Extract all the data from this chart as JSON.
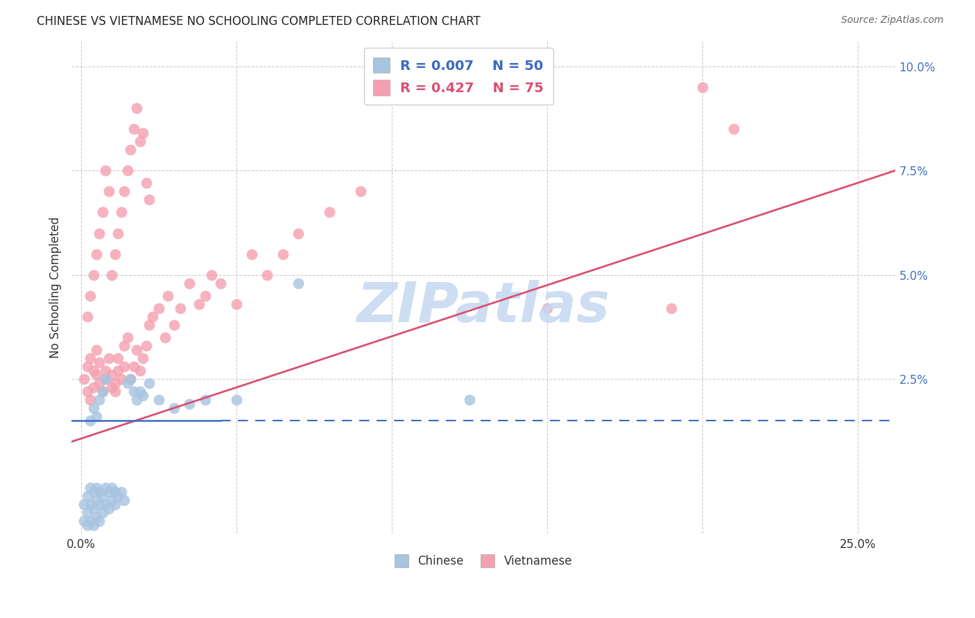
{
  "title": "CHINESE VS VIETNAMESE NO SCHOOLING COMPLETED CORRELATION CHART",
  "source": "Source: ZipAtlas.com",
  "ylabel": "No Schooling Completed",
  "xlim": [
    -0.003,
    0.262
  ],
  "ylim": [
    -0.012,
    0.106
  ],
  "chinese_color": "#a8c4e0",
  "vietnamese_color": "#f4a0b0",
  "chinese_R": 0.007,
  "chinese_N": 50,
  "vietnamese_R": 0.427,
  "vietnamese_N": 75,
  "chinese_trend_color": "#3a6abf",
  "vietnamese_trend_color": "#d95070",
  "watermark": "ZIPatlas",
  "watermark_color": "#c5d8f0",
  "grid_color": "#cccccc",
  "background_color": "#ffffff",
  "right_ytick_vals": [
    0.025,
    0.05,
    0.075,
    0.1
  ],
  "right_ytick_labels": [
    "2.5%",
    "5.0%",
    "7.5%",
    "10.0%"
  ],
  "grid_ytick_vals": [
    0.025,
    0.05,
    0.075,
    0.1
  ],
  "xtick_vals": [
    0.0,
    0.05,
    0.1,
    0.15,
    0.2,
    0.25
  ],
  "xtick_labels": [
    "0.0%",
    "",
    "",
    "",
    "",
    "25.0%"
  ],
  "chinese_trend_y0": 0.015,
  "chinese_trend_y1": 0.015,
  "chinese_trend_x_solid_end": 0.045,
  "vietnamese_trend_y0": 0.01,
  "vietnamese_trend_y1": 0.075,
  "viet_scatter_x": [
    0.001,
    0.002,
    0.002,
    0.003,
    0.003,
    0.004,
    0.004,
    0.005,
    0.005,
    0.006,
    0.006,
    0.007,
    0.008,
    0.008,
    0.009,
    0.01,
    0.01,
    0.011,
    0.011,
    0.012,
    0.012,
    0.013,
    0.014,
    0.014,
    0.015,
    0.016,
    0.017,
    0.018,
    0.019,
    0.02,
    0.021,
    0.022,
    0.023,
    0.025,
    0.027,
    0.028,
    0.03,
    0.032,
    0.035,
    0.038,
    0.04,
    0.042,
    0.045,
    0.05,
    0.055,
    0.06,
    0.065,
    0.07,
    0.08,
    0.09,
    0.002,
    0.003,
    0.004,
    0.005,
    0.006,
    0.007,
    0.008,
    0.009,
    0.01,
    0.011,
    0.012,
    0.013,
    0.014,
    0.015,
    0.016,
    0.017,
    0.018,
    0.019,
    0.02,
    0.021,
    0.022,
    0.15,
    0.19,
    0.2,
    0.21
  ],
  "viet_scatter_y": [
    0.025,
    0.028,
    0.022,
    0.03,
    0.02,
    0.027,
    0.023,
    0.026,
    0.032,
    0.024,
    0.029,
    0.022,
    0.025,
    0.027,
    0.03,
    0.023,
    0.026,
    0.022,
    0.024,
    0.027,
    0.03,
    0.025,
    0.028,
    0.033,
    0.035,
    0.025,
    0.028,
    0.032,
    0.027,
    0.03,
    0.033,
    0.038,
    0.04,
    0.042,
    0.035,
    0.045,
    0.038,
    0.042,
    0.048,
    0.043,
    0.045,
    0.05,
    0.048,
    0.043,
    0.055,
    0.05,
    0.055,
    0.06,
    0.065,
    0.07,
    0.04,
    0.045,
    0.05,
    0.055,
    0.06,
    0.065,
    0.075,
    0.07,
    0.05,
    0.055,
    0.06,
    0.065,
    0.07,
    0.075,
    0.08,
    0.085,
    0.09,
    0.082,
    0.084,
    0.072,
    0.068,
    0.042,
    0.042,
    0.095,
    0.085
  ],
  "chin_scatter_x": [
    0.001,
    0.001,
    0.002,
    0.002,
    0.002,
    0.003,
    0.003,
    0.003,
    0.004,
    0.004,
    0.004,
    0.005,
    0.005,
    0.005,
    0.006,
    0.006,
    0.006,
    0.007,
    0.007,
    0.008,
    0.008,
    0.009,
    0.009,
    0.01,
    0.01,
    0.011,
    0.011,
    0.012,
    0.013,
    0.014,
    0.015,
    0.016,
    0.017,
    0.018,
    0.019,
    0.02,
    0.022,
    0.025,
    0.03,
    0.035,
    0.04,
    0.05,
    0.003,
    0.004,
    0.005,
    0.006,
    0.007,
    0.008,
    0.125,
    0.07
  ],
  "chin_scatter_y": [
    -0.005,
    -0.009,
    -0.003,
    -0.007,
    -0.01,
    -0.001,
    -0.005,
    -0.009,
    -0.002,
    -0.006,
    -0.01,
    -0.001,
    -0.004,
    -0.008,
    -0.002,
    -0.005,
    -0.009,
    -0.003,
    -0.007,
    -0.001,
    -0.005,
    -0.002,
    -0.006,
    -0.001,
    -0.004,
    -0.002,
    -0.005,
    -0.003,
    -0.002,
    -0.004,
    0.024,
    0.025,
    0.022,
    0.02,
    0.022,
    0.021,
    0.024,
    0.02,
    0.018,
    0.019,
    0.02,
    0.02,
    0.015,
    0.018,
    0.016,
    0.02,
    0.022,
    0.025,
    0.02,
    0.048
  ]
}
